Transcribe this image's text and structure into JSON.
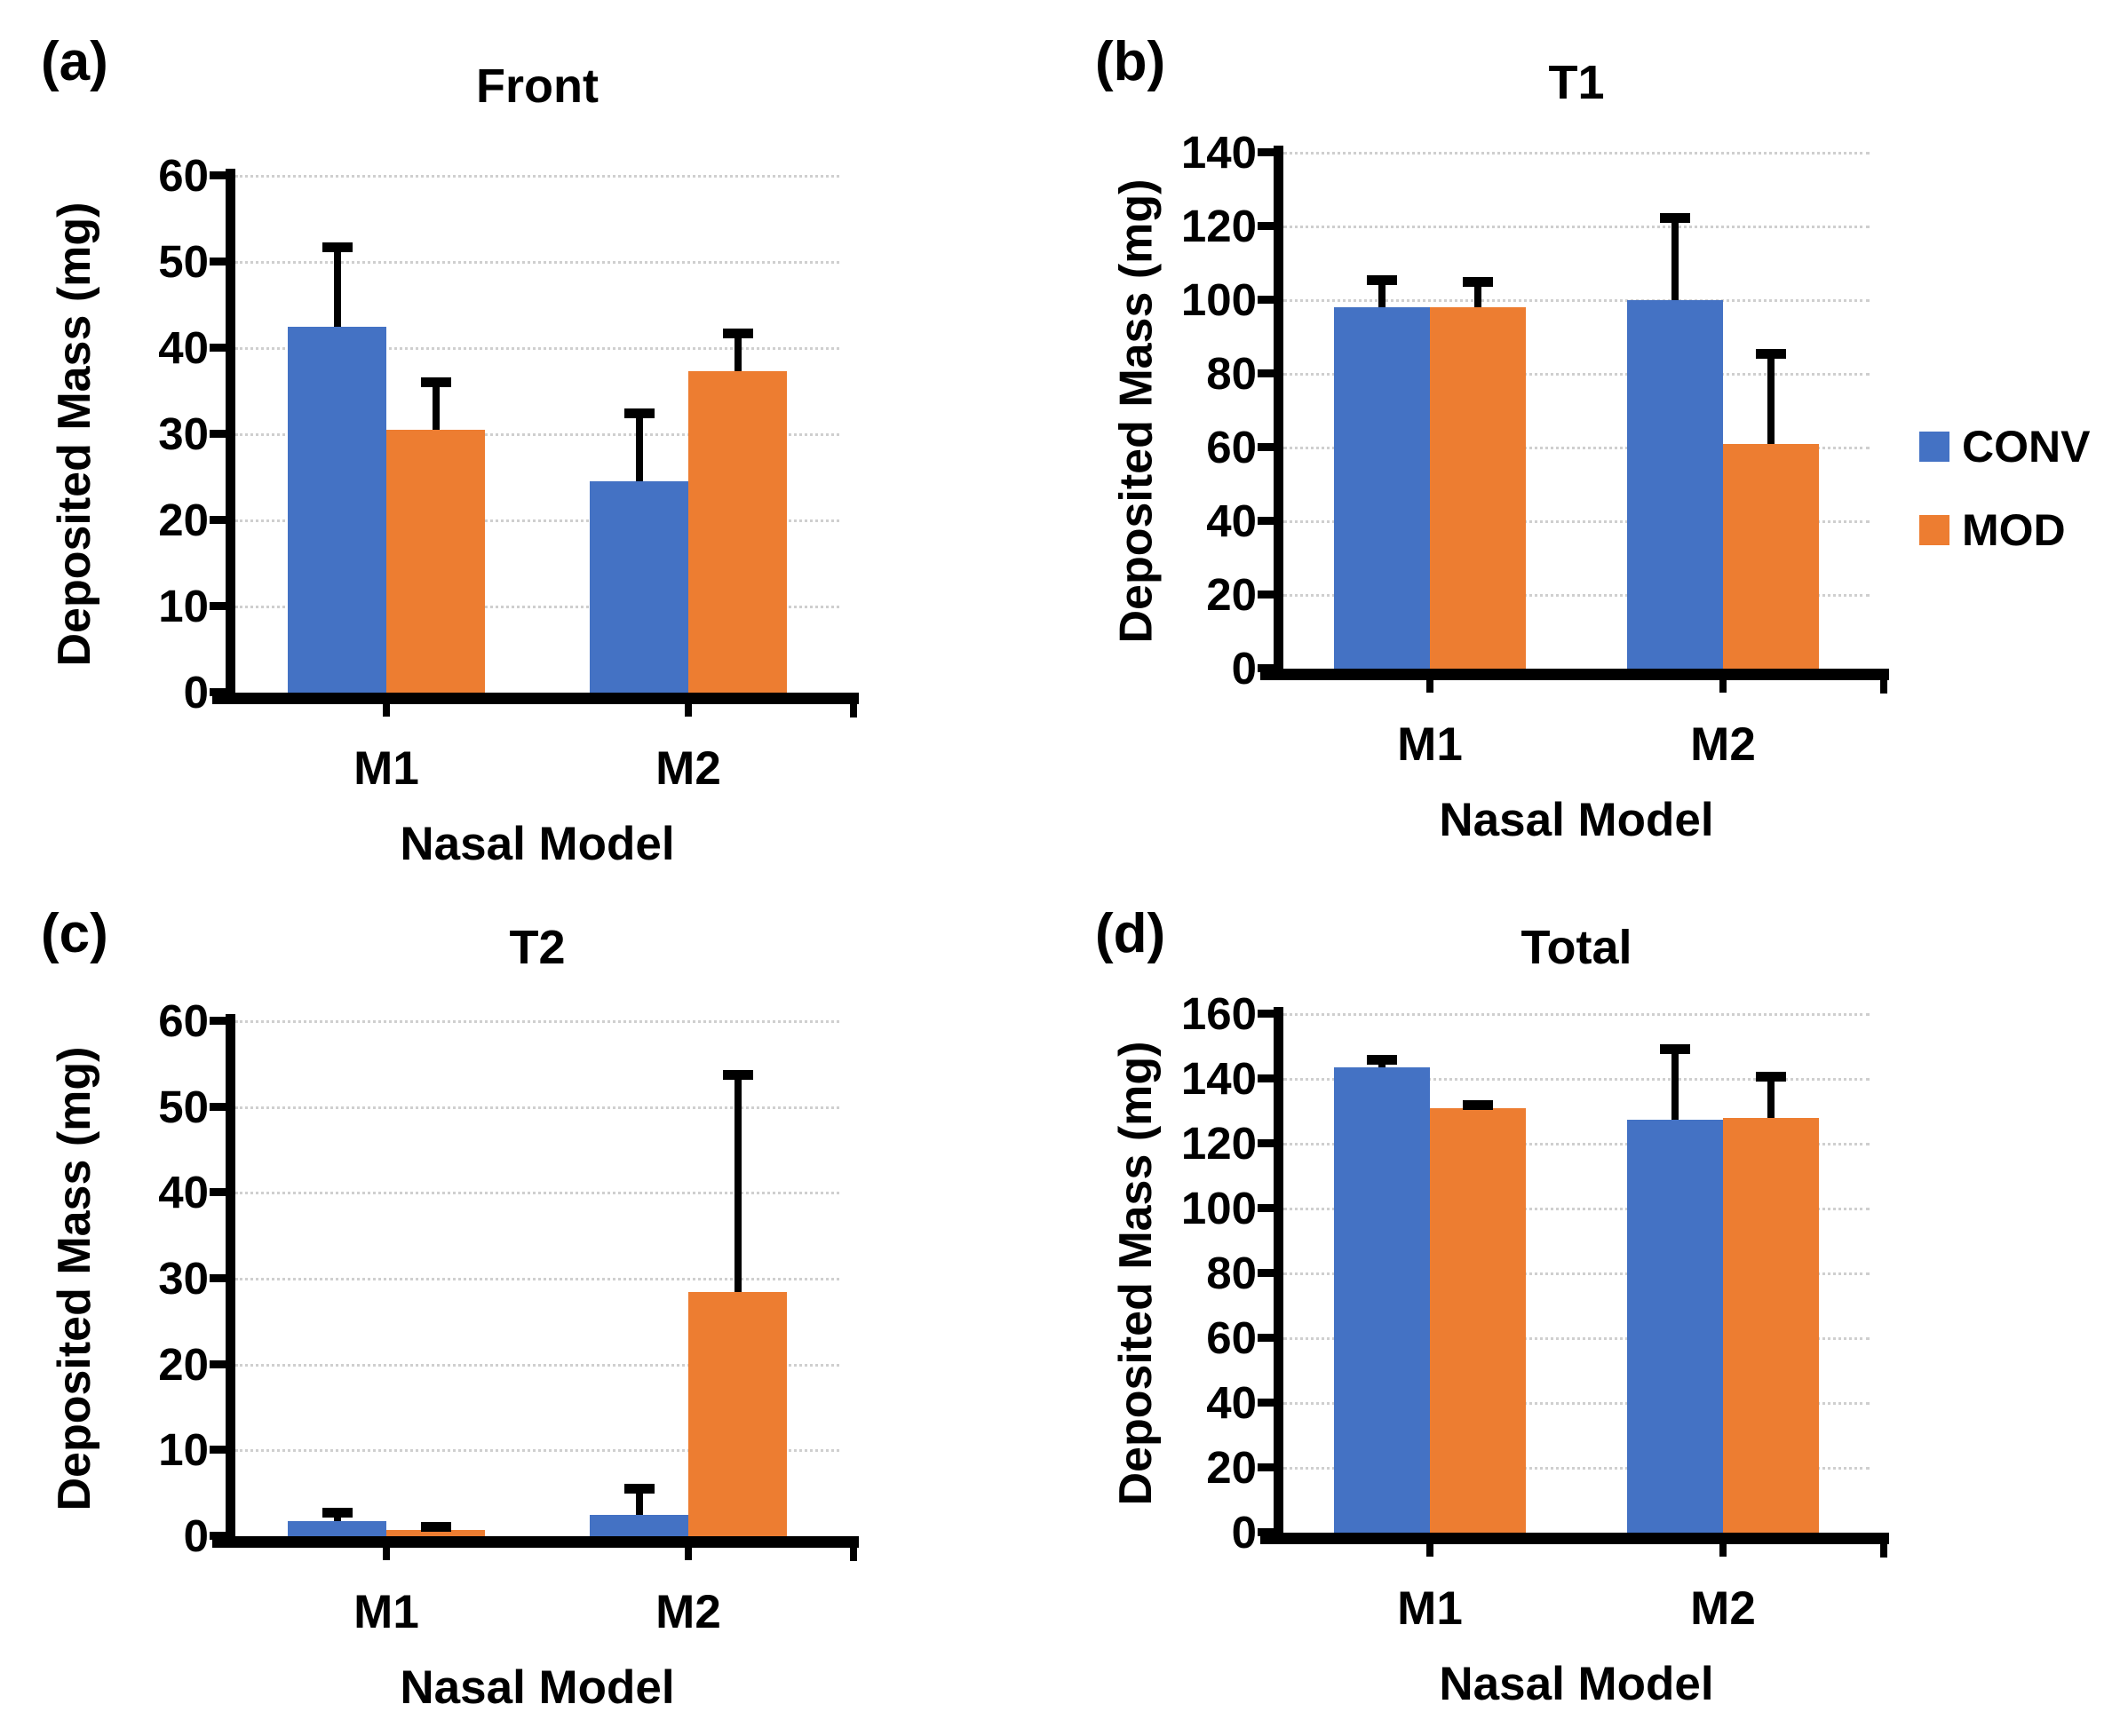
{
  "figure": {
    "background": "#ffffff",
    "text_color": "#000000",
    "gridline_color": "#cfcfcf"
  },
  "legend": {
    "position": "right-of-panel-b",
    "items": [
      {
        "label": "CONV",
        "color": "#4472C4"
      },
      {
        "label": "MOD",
        "color": "#ED7D31"
      }
    ]
  },
  "chart_data": [
    {
      "id": "front",
      "panel_label": "(a)",
      "title": "Front",
      "type": "bar",
      "categories": [
        "M1",
        "M2"
      ],
      "xlabel": "Nasal Model",
      "ylabel": "Deposited Mass (mg)",
      "ylim": [
        0,
        60
      ],
      "ytick_step": 10,
      "yticks": [
        0,
        10,
        20,
        30,
        40,
        50,
        60
      ],
      "grid": true,
      "series": [
        {
          "name": "CONV",
          "color": "#4472C4",
          "values": [
            42.5,
            24.5
          ],
          "error_plus": [
            9.5,
            8.2
          ]
        },
        {
          "name": "MOD",
          "color": "#ED7D31",
          "values": [
            30.5,
            37.3
          ],
          "error_plus": [
            5.8,
            4.7
          ]
        }
      ]
    },
    {
      "id": "t1",
      "panel_label": "(b)",
      "title": "T1",
      "type": "bar",
      "categories": [
        "M1",
        "M2"
      ],
      "xlabel": "Nasal Model",
      "ylabel": "Deposited Mass (mg)",
      "ylim": [
        0,
        140
      ],
      "ytick_step": 20,
      "yticks": [
        0,
        20,
        40,
        60,
        80,
        100,
        120,
        140
      ],
      "grid": true,
      "legend_here": true,
      "series": [
        {
          "name": "CONV",
          "color": "#4472C4",
          "values": [
            98,
            100
          ],
          "error_plus": [
            8,
            23
          ]
        },
        {
          "name": "MOD",
          "color": "#ED7D31",
          "values": [
            98,
            61
          ],
          "error_plus": [
            7.5,
            25
          ]
        }
      ]
    },
    {
      "id": "t2",
      "panel_label": "(c)",
      "title": "T2",
      "type": "bar",
      "categories": [
        "M1",
        "M2"
      ],
      "xlabel": "Nasal Model",
      "ylabel": "Deposited Mass (mg)",
      "ylim": [
        0,
        60
      ],
      "ytick_step": 10,
      "yticks": [
        0,
        10,
        20,
        30,
        40,
        50,
        60
      ],
      "grid": true,
      "series": [
        {
          "name": "CONV",
          "color": "#4472C4",
          "values": [
            1.8,
            2.5
          ],
          "error_plus": [
            1.2,
            3.3
          ]
        },
        {
          "name": "MOD",
          "color": "#ED7D31",
          "values": [
            0.7,
            28.5
          ],
          "error_plus": [
            0.6,
            25.5
          ]
        }
      ]
    },
    {
      "id": "total",
      "panel_label": "(d)",
      "title": "Total",
      "type": "bar",
      "categories": [
        "M1",
        "M2"
      ],
      "xlabel": "Nasal Model",
      "ylabel": "Deposited Mass (mg)",
      "ylim": [
        0,
        160
      ],
      "ytick_step": 20,
      "yticks": [
        0,
        20,
        40,
        60,
        80,
        100,
        120,
        140,
        160
      ],
      "grid": true,
      "series": [
        {
          "name": "CONV",
          "color": "#4472C4",
          "values": [
            143.5,
            127.5
          ],
          "error_plus": [
            3.0,
            22.5
          ]
        },
        {
          "name": "MOD",
          "color": "#ED7D31",
          "values": [
            131,
            128
          ],
          "error_plus": [
            1.5,
            13.5
          ]
        }
      ]
    }
  ]
}
